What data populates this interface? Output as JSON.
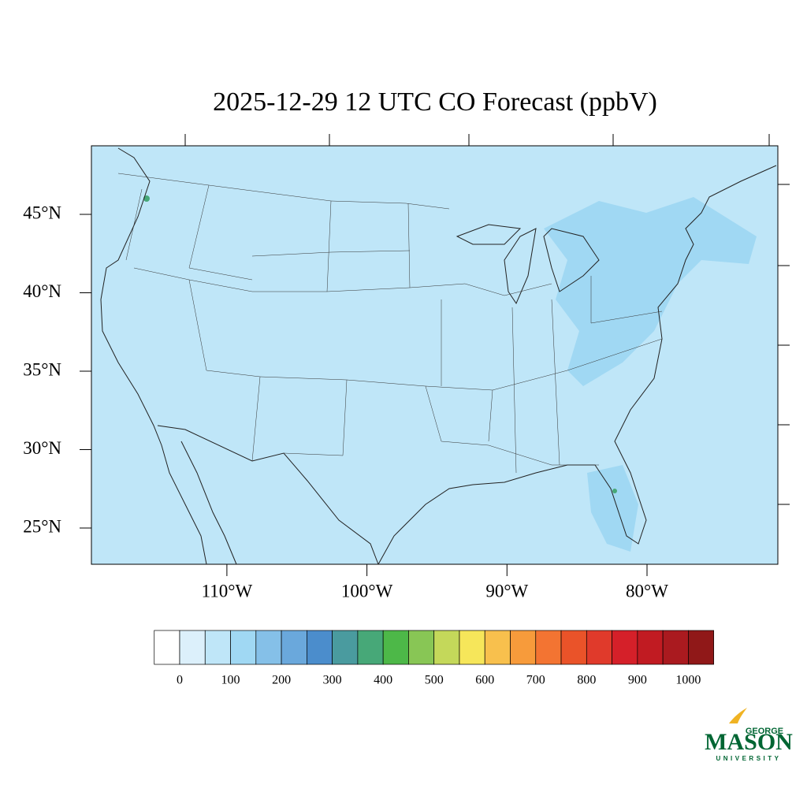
{
  "title": "2025-12-29 12 UTC CO Forecast (ppbV)",
  "lat_ticks": [
    {
      "value": 25,
      "label": "25°N"
    },
    {
      "value": 30,
      "label": "30°N"
    },
    {
      "value": 35,
      "label": "35°N"
    },
    {
      "value": 40,
      "label": "40°N"
    },
    {
      "value": 45,
      "label": "45°N"
    }
  ],
  "lon_ticks": [
    {
      "value": -110,
      "label": "110°W"
    },
    {
      "value": -100,
      "label": "100°W"
    },
    {
      "value": -90,
      "label": "90°W"
    },
    {
      "value": -80,
      "label": "80°W"
    }
  ],
  "colorbar": {
    "levels": [
      0,
      50,
      100,
      150,
      200,
      250,
      300,
      350,
      400,
      450,
      500,
      550,
      600,
      650,
      700,
      750,
      800,
      850,
      900,
      950,
      1000
    ],
    "ticks": [
      0,
      100,
      200,
      300,
      400,
      500,
      600,
      700,
      800,
      900,
      1000
    ],
    "colors": [
      "#ffffff",
      "#dcf0fb",
      "#bfe6f8",
      "#a0d8f3",
      "#85c0e8",
      "#6aa8dc",
      "#4b8dcc",
      "#4a9b9f",
      "#47a878",
      "#4db848",
      "#88c655",
      "#c4d85a",
      "#f6e65a",
      "#f8c04d",
      "#f79b3b",
      "#f37432",
      "#ea5329",
      "#e03a2b",
      "#d52029",
      "#c11b22",
      "#aa1a1f",
      "#901818"
    ]
  },
  "logo": {
    "top": "GEORGE",
    "main": "MASON",
    "bottom": "UNIVERSITY"
  }
}
